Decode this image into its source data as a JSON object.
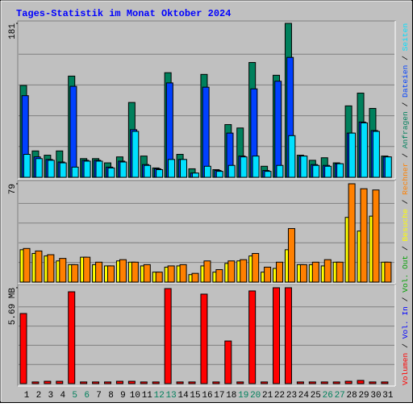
{
  "title": "Tages-Statistik im Monat Oktober 2024",
  "legend_separator": " / ",
  "extra_legend": [
    {
      "name": "Vol. In",
      "color": "#0000ff"
    },
    {
      "name": "Vol. Out",
      "color": "#00a000"
    }
  ],
  "chart_data": [
    {
      "type": "bar",
      "ylim": [
        0,
        181
      ],
      "yticks": [
        181
      ],
      "grid_divisions": 5,
      "series": [
        {
          "name": "Anfragen",
          "color": "#00805c",
          "values": [
            108,
            31,
            26,
            31,
            119,
            22,
            22,
            17,
            24,
            88,
            25,
            11,
            123,
            27,
            10,
            121,
            9,
            62,
            58,
            135,
            13,
            120,
            181,
            26,
            20,
            23,
            17,
            84,
            99,
            81,
            25
          ]
        },
        {
          "name": "Dateien",
          "color": "#0040ff",
          "values": [
            96,
            24,
            21,
            18,
            107,
            20,
            20,
            12,
            19,
            56,
            15,
            10,
            111,
            21,
            5,
            106,
            8,
            52,
            25,
            104,
            8,
            113,
            141,
            25,
            15,
            14,
            16,
            52,
            65,
            55,
            24
          ]
        },
        {
          "name": "Seiten",
          "color": "#00e0ff",
          "values": [
            27,
            22,
            20,
            17,
            12,
            19,
            19,
            11,
            18,
            54,
            14,
            9,
            21,
            21,
            5,
            13,
            7,
            14,
            24,
            25,
            7,
            14,
            49,
            25,
            14,
            13,
            16,
            52,
            64,
            54,
            24
          ]
        }
      ]
    },
    {
      "type": "bar",
      "ylim": [
        0,
        79
      ],
      "yticks": [
        79
      ],
      "grid_divisions": 5,
      "series": [
        {
          "name": "Besuche",
          "color": "#ffff00",
          "values": [
            26,
            23,
            21,
            17,
            14,
            20,
            14,
            13,
            17,
            16,
            13,
            8,
            12,
            13,
            6,
            13,
            8,
            15,
            17,
            21,
            8,
            11,
            26,
            14,
            14,
            13,
            16,
            52,
            41,
            53,
            16
          ]
        },
        {
          "name": "Rechner",
          "color": "#ff8000",
          "values": [
            27,
            25,
            22,
            19,
            14,
            20,
            16,
            13,
            18,
            16,
            14,
            8,
            13,
            14,
            7,
            17,
            10,
            17,
            18,
            23,
            12,
            16,
            43,
            14,
            16,
            18,
            16,
            79,
            75,
            74,
            16
          ]
        }
      ]
    },
    {
      "type": "bar",
      "ylim": [
        0,
        5.69
      ],
      "yticks": [
        {
          "value": 5.69,
          "label": "5.69 MB"
        }
      ],
      "grid_divisions": 5,
      "categories": [
        "1",
        "2",
        "3",
        "4",
        "5",
        "6",
        "7",
        "8",
        "9",
        "10",
        "11",
        "12",
        "13",
        "14",
        "15",
        "16",
        "17",
        "18",
        "19",
        "20",
        "21",
        "22",
        "23",
        "24",
        "25",
        "26",
        "27",
        "28",
        "29",
        "30",
        "31"
      ],
      "category_colors": [
        "#000000",
        "#000000",
        "#000000",
        "#000000",
        "#00805c",
        "#00805c",
        "#000000",
        "#000000",
        "#000000",
        "#000000",
        "#000000",
        "#00805c",
        "#00805c",
        "#000000",
        "#000000",
        "#000000",
        "#000000",
        "#000000",
        "#00805c",
        "#00805c",
        "#000000",
        "#000000",
        "#000000",
        "#000000",
        "#000000",
        "#00805c",
        "#00805c",
        "#000000",
        "#000000",
        "#000000",
        "#000000"
      ],
      "series": [
        {
          "name": "Volumen",
          "color": "#ff0000",
          "values": [
            4.16,
            0.1,
            0.14,
            0.14,
            5.45,
            0.1,
            0.1,
            0.1,
            0.14,
            0.14,
            0.1,
            0.1,
            5.64,
            0.1,
            0.1,
            5.31,
            0.1,
            2.53,
            0.1,
            5.5,
            0.1,
            5.69,
            5.69,
            0.1,
            0.1,
            0.1,
            0.1,
            0.14,
            0.19,
            0.1,
            0.1
          ]
        }
      ]
    }
  ]
}
